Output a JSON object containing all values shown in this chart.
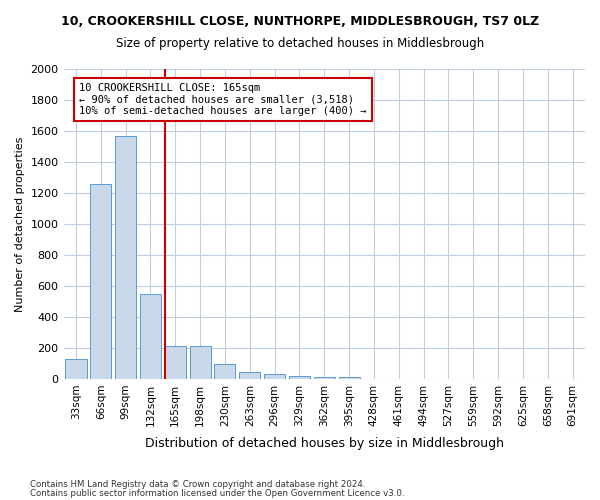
{
  "title1": "10, CROOKERSHILL CLOSE, NUNTHORPE, MIDDLESBROUGH, TS7 0LZ",
  "title2": "Size of property relative to detached houses in Middlesbrough",
  "xlabel": "Distribution of detached houses by size in Middlesbrough",
  "ylabel": "Number of detached properties",
  "footnote1": "Contains HM Land Registry data © Crown copyright and database right 2024.",
  "footnote2": "Contains public sector information licensed under the Open Government Licence v3.0.",
  "categories": [
    "33sqm",
    "66sqm",
    "99sqm",
    "132sqm",
    "165sqm",
    "198sqm",
    "230sqm",
    "263sqm",
    "296sqm",
    "329sqm",
    "362sqm",
    "395sqm",
    "428sqm",
    "461sqm",
    "494sqm",
    "527sqm",
    "559sqm",
    "592sqm",
    "625sqm",
    "658sqm",
    "691sqm"
  ],
  "values": [
    130,
    1260,
    1570,
    550,
    215,
    215,
    95,
    45,
    30,
    20,
    15,
    15,
    0,
    0,
    0,
    0,
    0,
    0,
    0,
    0,
    0
  ],
  "bar_color": "#c9d9ea",
  "bar_edge_color": "#5b9bd5",
  "highlight_bar_index": 4,
  "highlight_line_color": "#cc0000",
  "annotation_text": "10 CROOKERSHILL CLOSE: 165sqm\n← 90% of detached houses are smaller (3,518)\n10% of semi-detached houses are larger (400) →",
  "annotation_box_color": "#cc0000",
  "ylim": [
    0,
    2000
  ],
  "yticks": [
    0,
    200,
    400,
    600,
    800,
    1000,
    1200,
    1400,
    1600,
    1800,
    2000
  ],
  "bg_color": "#ffffff",
  "grid_color": "#c0cfe0"
}
